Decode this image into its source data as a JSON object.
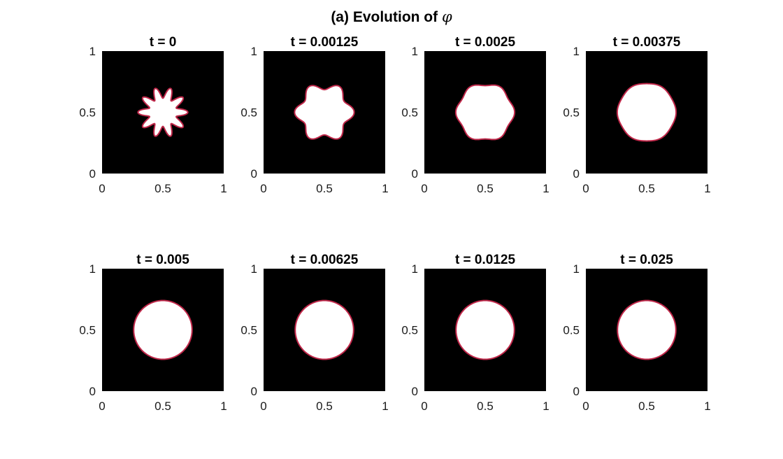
{
  "figure": {
    "title_prefix": "(a) Evolution of ",
    "title_symbol": "φ"
  },
  "colors": {
    "background": "#000000",
    "interior": "#ffffff",
    "interface": "#c0284a"
  },
  "chart_data": [
    {
      "type": "heatmap",
      "title": "t = 0",
      "xlim": [
        0,
        1
      ],
      "ylim": [
        0,
        1
      ],
      "xticks": [
        "0",
        "0.5",
        "1"
      ],
      "yticks": [
        "0",
        "0.5",
        "1"
      ],
      "shape": {
        "center": [
          0.5,
          0.5
        ],
        "radius": 0.16,
        "perturbation_amplitude": 0.045,
        "lobes": 10
      }
    },
    {
      "type": "heatmap",
      "title": "t = 0.00125",
      "xlim": [
        0,
        1
      ],
      "ylim": [
        0,
        1
      ],
      "xticks": [
        "0",
        "0.5",
        "1"
      ],
      "yticks": [
        "0",
        "0.5",
        "1"
      ],
      "shape": {
        "center": [
          0.5,
          0.5
        ],
        "radius": 0.215,
        "perturbation_amplitude": 0.03,
        "lobes": 6
      }
    },
    {
      "type": "heatmap",
      "title": "t = 0.0025",
      "xlim": [
        0,
        1
      ],
      "ylim": [
        0,
        1
      ],
      "xticks": [
        "0",
        "0.5",
        "1"
      ],
      "yticks": [
        "0",
        "0.5",
        "1"
      ],
      "shape": {
        "center": [
          0.5,
          0.5
        ],
        "radius": 0.23,
        "perturbation_amplitude": 0.012,
        "lobes": 6
      }
    },
    {
      "type": "heatmap",
      "title": "t = 0.00375",
      "xlim": [
        0,
        1
      ],
      "ylim": [
        0,
        1
      ],
      "xticks": [
        "0",
        "0.5",
        "1"
      ],
      "yticks": [
        "0",
        "0.5",
        "1"
      ],
      "shape": {
        "center": [
          0.5,
          0.5
        ],
        "radius": 0.238,
        "perturbation_amplitude": 0.004,
        "lobes": 6
      }
    },
    {
      "type": "heatmap",
      "title": "t = 0.005",
      "xlim": [
        0,
        1
      ],
      "ylim": [
        0,
        1
      ],
      "xticks": [
        "0",
        "0.5",
        "1"
      ],
      "yticks": [
        "0",
        "0.5",
        "1"
      ],
      "shape": {
        "center": [
          0.5,
          0.5
        ],
        "radius": 0.24,
        "perturbation_amplitude": 0,
        "lobes": 0
      }
    },
    {
      "type": "heatmap",
      "title": "t = 0.00625",
      "xlim": [
        0,
        1
      ],
      "ylim": [
        0,
        1
      ],
      "xticks": [
        "0",
        "0.5",
        "1"
      ],
      "yticks": [
        "0",
        "0.5",
        "1"
      ],
      "shape": {
        "center": [
          0.5,
          0.5
        ],
        "radius": 0.24,
        "perturbation_amplitude": 0,
        "lobes": 0
      }
    },
    {
      "type": "heatmap",
      "title": "t = 0.0125",
      "xlim": [
        0,
        1
      ],
      "ylim": [
        0,
        1
      ],
      "xticks": [
        "0",
        "0.5",
        "1"
      ],
      "yticks": [
        "0",
        "0.5",
        "1"
      ],
      "shape": {
        "center": [
          0.5,
          0.5
        ],
        "radius": 0.24,
        "perturbation_amplitude": 0,
        "lobes": 0
      }
    },
    {
      "type": "heatmap",
      "title": "t = 0.025",
      "xlim": [
        0,
        1
      ],
      "ylim": [
        0,
        1
      ],
      "xticks": [
        "0",
        "0.5",
        "1"
      ],
      "yticks": [
        "0",
        "0.5",
        "1"
      ],
      "shape": {
        "center": [
          0.5,
          0.5
        ],
        "radius": 0.24,
        "perturbation_amplitude": 0,
        "lobes": 0
      }
    }
  ]
}
